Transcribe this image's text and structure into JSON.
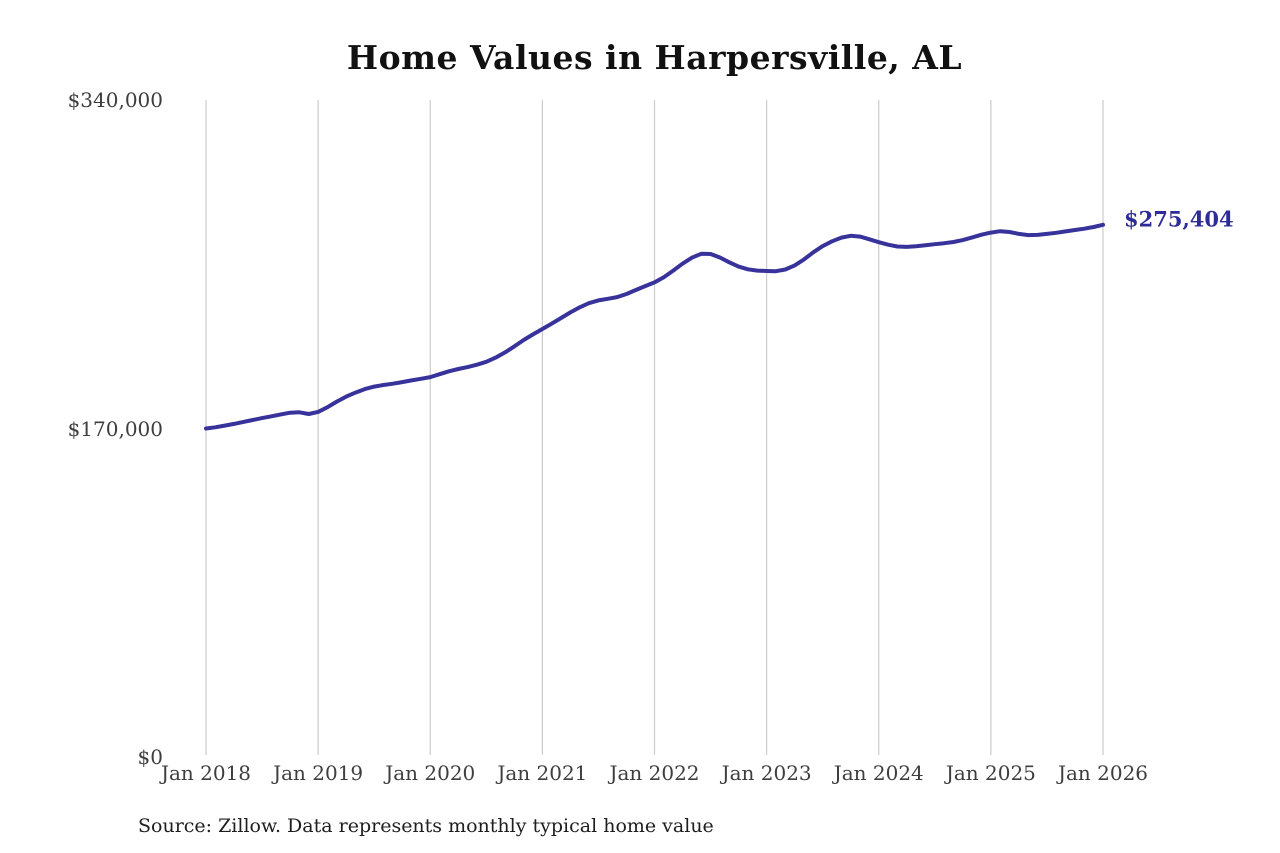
{
  "title": "Home Values in Harpersville, AL",
  "end_label": "$275,404",
  "source_note": "Source: Zillow. Data represents monthly typical home value",
  "colors": {
    "line": "#38339a",
    "value_label": "#2e2c96",
    "gridline": "#cccccc",
    "title_text": "#111111",
    "axis_text": "#3e3e3e",
    "source_text": "#1e1e1e",
    "background": "#ffffff"
  },
  "chart_data": {
    "type": "line",
    "title": "Home Values in Harpersville, AL",
    "xlabel": "",
    "ylabel": "",
    "ylim": [
      0,
      340000
    ],
    "grid": "vertical-only",
    "legend": "none",
    "x_ticks": [
      "Jan 2018",
      "Jan 2019",
      "Jan 2020",
      "Jan 2021",
      "Jan 2022",
      "Jan 2023",
      "Jan 2024",
      "Jan 2025",
      "Jan 2026"
    ],
    "y_ticks": [
      {
        "label": "$340,000",
        "value": 340000
      },
      {
        "label": "$170,000",
        "value": 170000
      },
      {
        "label": "$0",
        "value": 0
      }
    ],
    "end_value": 275404,
    "end_value_label": "$275,404",
    "series": [
      {
        "name": "Monthly typical home value (USD)",
        "start": "Jan 2018",
        "end": "Jan 2026",
        "frequency": "monthly",
        "values": [
          170000,
          170600,
          171500,
          172400,
          173400,
          174400,
          175400,
          176300,
          177300,
          178200,
          178400,
          177500,
          178600,
          181000,
          183900,
          186500,
          188600,
          190400,
          191700,
          192500,
          193200,
          194000,
          194900,
          195700,
          196600,
          198100,
          199600,
          200800,
          201800,
          203000,
          204500,
          206700,
          209400,
          212500,
          215800,
          218700,
          221500,
          224300,
          227200,
          230100,
          232700,
          234900,
          236300,
          237100,
          238000,
          239600,
          241700,
          243700,
          245600,
          248300,
          251700,
          255300,
          258400,
          260400,
          260300,
          258500,
          256000,
          253800,
          252400,
          251700,
          251500,
          251400,
          252300,
          254400,
          257500,
          261200,
          264400,
          266900,
          268800,
          269700,
          269300,
          267900,
          266400,
          265100,
          264200,
          264000,
          264300,
          264800,
          265400,
          265900,
          266500,
          267500,
          268900,
          270300,
          271400,
          272100,
          271700,
          270700,
          270100,
          270200,
          270700,
          271300,
          272000,
          272700,
          273400,
          274300,
          275404
        ]
      }
    ]
  }
}
